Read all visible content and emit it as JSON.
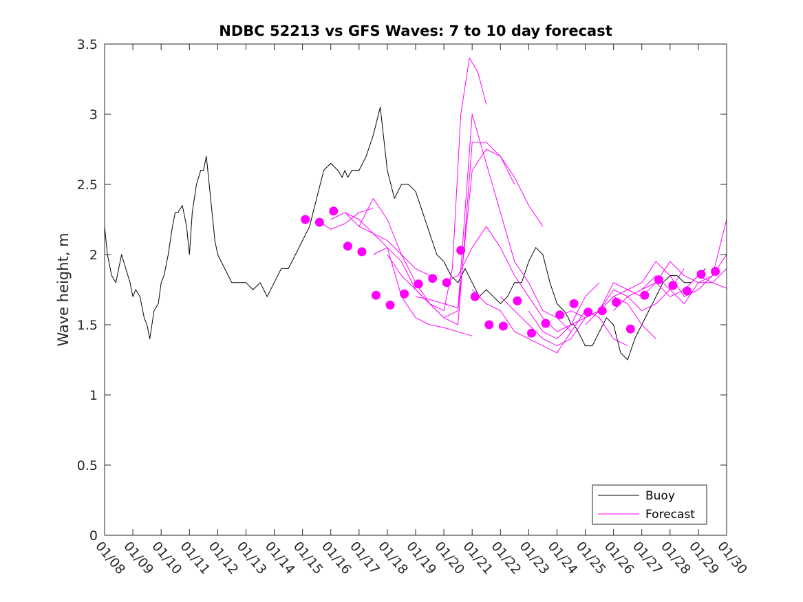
{
  "chart_data": {
    "type": "line",
    "title": "NDBC 52213 vs GFS Waves: 7 to 10 day forecast",
    "ylabel": "Wave height, m",
    "xlabel": "",
    "xlim": [
      0,
      22
    ],
    "ylim": [
      0,
      3.5
    ],
    "yticks": [
      0,
      0.5,
      1,
      1.5,
      2,
      2.5,
      3,
      3.5
    ],
    "ytick_labels": [
      "0",
      "0.5",
      "1",
      "1.5",
      "2",
      "2.5",
      "3",
      "3.5"
    ],
    "xtick_labels": [
      "01/08",
      "01/09",
      "01/10",
      "01/11",
      "01/12",
      "01/13",
      "01/14",
      "01/15",
      "01/16",
      "01/17",
      "01/18",
      "01/19",
      "01/20",
      "01/21",
      "01/22",
      "01/23",
      "01/24",
      "01/25",
      "01/26",
      "01/27",
      "01/28",
      "01/29",
      "01/30"
    ],
    "legend": {
      "placement": "bottom-right",
      "entries": [
        "Buoy",
        "Forecast"
      ]
    },
    "colors": {
      "buoy": "#000000",
      "forecast": "#ff00ff"
    },
    "series": [
      {
        "name": "Buoy",
        "style": "line",
        "x": [
          0,
          0.1,
          0.25,
          0.4,
          0.5,
          0.6,
          0.75,
          0.9,
          1.0,
          1.1,
          1.25,
          1.4,
          1.5,
          1.6,
          1.75,
          1.9,
          2.0,
          2.1,
          2.25,
          2.4,
          2.5,
          2.6,
          2.75,
          2.9,
          3.0,
          3.1,
          3.25,
          3.4,
          3.5,
          3.6,
          3.75,
          3.9,
          4.0,
          4.25,
          4.5,
          4.75,
          5.0,
          5.25,
          5.5,
          5.75,
          6.0,
          6.25,
          6.5,
          6.75,
          7.0,
          7.25,
          7.5,
          7.75,
          8.0,
          8.25,
          8.4,
          8.5,
          8.6,
          8.75,
          9.0,
          9.25,
          9.5,
          9.75,
          10.0,
          10.25,
          10.5,
          10.75,
          11.0,
          11.25,
          11.5,
          11.75,
          12.0,
          12.25,
          12.5,
          12.75,
          13.0,
          13.25,
          13.5,
          13.75,
          14.0,
          14.25,
          14.5,
          14.75,
          15.0,
          15.25,
          15.5,
          15.75,
          16.0,
          16.25,
          16.4,
          16.5,
          16.6,
          16.75,
          17.0,
          17.25,
          17.5,
          17.75,
          18.0,
          18.25,
          18.5,
          18.75,
          19.0,
          19.25,
          19.5,
          19.75,
          20.0,
          20.25,
          20.5,
          20.75,
          21.0,
          21.25
        ],
        "values": [
          2.2,
          2.0,
          1.85,
          1.8,
          1.9,
          2.0,
          1.9,
          1.8,
          1.7,
          1.75,
          1.7,
          1.55,
          1.5,
          1.4,
          1.6,
          1.65,
          1.8,
          1.85,
          2.0,
          2.2,
          2.3,
          2.3,
          2.35,
          2.2,
          2.0,
          2.3,
          2.5,
          2.6,
          2.6,
          2.7,
          2.4,
          2.1,
          2.0,
          1.9,
          1.8,
          1.8,
          1.8,
          1.75,
          1.8,
          1.7,
          1.8,
          1.9,
          1.9,
          2.0,
          2.1,
          2.2,
          2.4,
          2.6,
          2.65,
          2.6,
          2.55,
          2.6,
          2.55,
          2.6,
          2.6,
          2.7,
          2.85,
          3.05,
          2.6,
          2.4,
          2.5,
          2.5,
          2.45,
          2.3,
          2.15,
          2.0,
          1.95,
          1.85,
          1.8,
          1.9,
          1.8,
          1.7,
          1.75,
          1.7,
          1.65,
          1.7,
          1.8,
          1.8,
          1.95,
          2.05,
          2.0,
          1.8,
          1.65,
          1.6,
          1.55,
          1.5,
          1.5,
          1.45,
          1.35,
          1.35,
          1.45,
          1.55,
          1.5,
          1.3,
          1.25,
          1.4,
          1.5,
          1.6,
          1.7,
          1.8,
          1.85,
          1.85,
          1.8,
          1.8,
          1.85,
          1.9
        ]
      },
      {
        "name": "Forecast run 1",
        "style": "line",
        "x": [
          7.5,
          8.0,
          8.5,
          9.0,
          9.5
        ],
        "values": [
          2.25,
          2.18,
          2.22,
          2.3,
          2.33
        ]
      },
      {
        "name": "Forecast run 2",
        "style": "line",
        "x": [
          8.0,
          8.5,
          9.0,
          9.5,
          10.0,
          10.5,
          11.0,
          11.5
        ],
        "values": [
          2.25,
          2.3,
          2.2,
          2.15,
          2.1,
          2.0,
          1.9,
          1.85
        ]
      },
      {
        "name": "Forecast run 3",
        "style": "line",
        "x": [
          8.5,
          9.0,
          9.5,
          10.0,
          10.5,
          11.0,
          11.5,
          12.0,
          12.5,
          13.0
        ],
        "values": [
          2.3,
          2.25,
          2.15,
          2.05,
          1.7,
          1.55,
          1.5,
          1.48,
          1.45,
          1.42
        ]
      },
      {
        "name": "Forecast run 4",
        "style": "line",
        "x": [
          9.0,
          9.5,
          10.0,
          10.5,
          11.0,
          11.5,
          12.0,
          12.3,
          12.6,
          12.9,
          13.2,
          13.5
        ],
        "values": [
          2.2,
          2.4,
          2.25,
          2.0,
          1.8,
          1.65,
          1.6,
          1.9,
          3.0,
          3.4,
          3.3,
          3.07
        ]
      },
      {
        "name": "Forecast run 5",
        "style": "line",
        "x": [
          9.5,
          10.0,
          10.5,
          11.0,
          11.5,
          12.0,
          12.5,
          13.0,
          13.5,
          14.0,
          14.5
        ],
        "values": [
          2.0,
          2.05,
          1.95,
          1.75,
          1.65,
          1.55,
          1.5,
          2.8,
          2.8,
          2.7,
          2.5
        ]
      },
      {
        "name": "Forecast run 6",
        "style": "line",
        "x": [
          10.0,
          10.5,
          11.0,
          11.5,
          12.0,
          12.5,
          13.0,
          13.5,
          14.0,
          14.5,
          15.0,
          15.5
        ],
        "values": [
          2.0,
          1.85,
          1.75,
          1.65,
          1.55,
          1.6,
          2.6,
          2.75,
          2.7,
          2.55,
          2.35,
          2.2
        ]
      },
      {
        "name": "Forecast run 7",
        "style": "line",
        "x": [
          11.0,
          11.5,
          12.0,
          12.5,
          13.0,
          13.5,
          14.0,
          14.5,
          15.0,
          15.5,
          16.0,
          16.5
        ],
        "values": [
          1.7,
          1.68,
          1.65,
          1.62,
          3.0,
          2.65,
          2.3,
          1.95,
          1.8,
          1.6,
          1.55,
          1.45
        ]
      },
      {
        "name": "Forecast run 8",
        "style": "line",
        "x": [
          12.0,
          12.5,
          13.0,
          13.5,
          14.0,
          14.5,
          15.0,
          15.5,
          16.0,
          16.5,
          17.0,
          17.5
        ],
        "values": [
          1.8,
          1.85,
          2.05,
          2.2,
          2.05,
          1.85,
          1.7,
          1.55,
          1.45,
          1.5,
          1.7,
          1.8
        ]
      },
      {
        "name": "Forecast run 9",
        "style": "line",
        "x": [
          13.0,
          13.5,
          14.0,
          14.5,
          15.0,
          15.5,
          16.0,
          16.5,
          17.0,
          17.5,
          18.0,
          18.5
        ],
        "values": [
          1.75,
          1.65,
          1.6,
          1.45,
          1.4,
          1.35,
          1.3,
          1.45,
          1.6,
          1.55,
          1.4,
          1.35
        ]
      },
      {
        "name": "Forecast run 10",
        "style": "line",
        "x": [
          14.0,
          14.5,
          15.0,
          15.5,
          16.0,
          16.5,
          17.0,
          17.5,
          18.0,
          18.5,
          19.0,
          19.5
        ],
        "values": [
          1.7,
          1.6,
          1.5,
          1.4,
          1.35,
          1.4,
          1.55,
          1.6,
          1.7,
          1.65,
          1.5,
          1.4
        ]
      },
      {
        "name": "Forecast run 11",
        "style": "line",
        "x": [
          15.0,
          15.5,
          16.0,
          16.5,
          17.0,
          17.5,
          18.0,
          18.5,
          19.0,
          19.5,
          20.0,
          20.5
        ],
        "values": [
          1.6,
          1.45,
          1.4,
          1.5,
          1.55,
          1.6,
          1.75,
          1.7,
          1.6,
          1.65,
          1.75,
          1.9
        ]
      },
      {
        "name": "Forecast run 12",
        "style": "line",
        "x": [
          16.0,
          16.5,
          17.0,
          17.5,
          18.0,
          18.5,
          19.0,
          19.5,
          20.0,
          20.5,
          21.0,
          21.5,
          22.0
        ],
        "values": [
          1.55,
          1.6,
          1.55,
          1.6,
          1.8,
          1.75,
          1.7,
          1.8,
          1.95,
          1.85,
          1.8,
          1.85,
          2.0
        ]
      },
      {
        "name": "Forecast run 13",
        "style": "line",
        "x": [
          17.0,
          17.5,
          18.0,
          18.5,
          19.0,
          19.5,
          20.0,
          20.5,
          21.0,
          21.5,
          22.0
        ],
        "values": [
          1.5,
          1.6,
          1.7,
          1.75,
          1.8,
          1.95,
          1.85,
          1.7,
          1.75,
          1.85,
          2.25
        ]
      },
      {
        "name": "Forecast run 14",
        "style": "line",
        "x": [
          18.0,
          18.5,
          19.0,
          19.5,
          20.0,
          20.5,
          21.0,
          21.5,
          22.0
        ],
        "values": [
          1.6,
          1.7,
          1.75,
          1.85,
          1.75,
          1.65,
          1.8,
          1.8,
          1.9
        ]
      },
      {
        "name": "Forecast run 15",
        "style": "line",
        "x": [
          19.0,
          19.5,
          20.0,
          20.5,
          21.0,
          21.5,
          22.0
        ],
        "values": [
          1.75,
          1.8,
          1.7,
          1.75,
          1.85,
          1.8,
          1.76
        ]
      },
      {
        "name": "Forecast markers",
        "style": "marker",
        "x": [
          7.1,
          7.6,
          8.1,
          8.6,
          9.1,
          9.6,
          10.1,
          10.6,
          11.1,
          11.6,
          12.1,
          12.6,
          13.1,
          13.6,
          14.1,
          14.6,
          15.1,
          15.6,
          16.1,
          16.6,
          17.1,
          17.6,
          18.1,
          18.6,
          19.1,
          19.6,
          20.1,
          20.6,
          21.1,
          21.6
        ],
        "values": [
          2.25,
          2.23,
          2.31,
          2.06,
          2.02,
          1.71,
          1.64,
          1.72,
          1.79,
          1.83,
          1.8,
          2.03,
          1.7,
          1.5,
          1.49,
          1.67,
          1.44,
          1.51,
          1.57,
          1.65,
          1.59,
          1.6,
          1.66,
          1.47,
          1.71,
          1.82,
          1.78,
          1.74,
          1.86,
          1.88
        ]
      }
    ]
  }
}
